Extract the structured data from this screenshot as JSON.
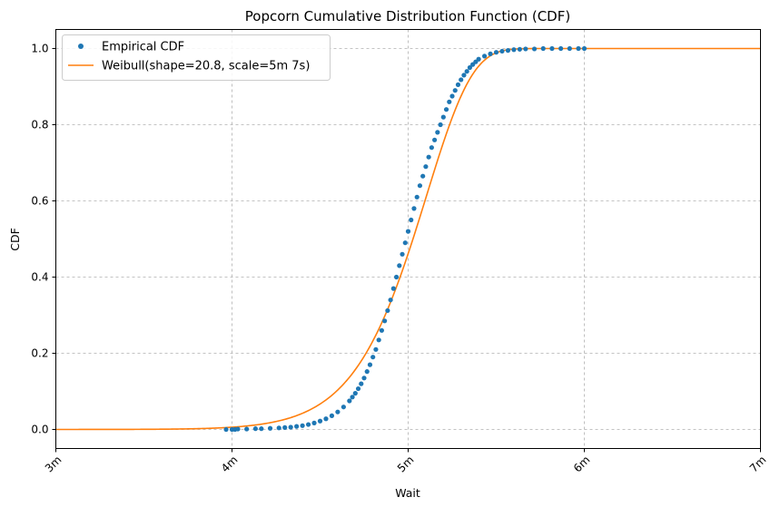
{
  "chart_data": {
    "type": "line",
    "title": "Popcorn Cumulative Distribution Function (CDF)",
    "xlabel": "Wait",
    "ylabel": "CDF",
    "xlim_seconds": [
      180,
      420
    ],
    "ylim": [
      -0.05,
      1.05
    ],
    "x_ticks": [
      {
        "value": 180,
        "label": "3m"
      },
      {
        "value": 240,
        "label": "4m"
      },
      {
        "value": 300,
        "label": "5m"
      },
      {
        "value": 360,
        "label": "6m"
      },
      {
        "value": 420,
        "label": "7m"
      }
    ],
    "y_ticks": [
      {
        "value": 0.0,
        "label": "0.0"
      },
      {
        "value": 0.2,
        "label": "0.2"
      },
      {
        "value": 0.4,
        "label": "0.4"
      },
      {
        "value": 0.6,
        "label": "0.6"
      },
      {
        "value": 0.8,
        "label": "0.8"
      },
      {
        "value": 1.0,
        "label": "1.0"
      }
    ],
    "grid": true,
    "legend_position": "top-left",
    "series": [
      {
        "name": "Empirical CDF",
        "kind": "scatter",
        "color": "#1f77b4",
        "x_seconds": [
          238,
          240,
          241,
          242,
          245,
          248,
          250,
          253,
          256,
          258,
          260,
          262,
          264,
          266,
          268,
          270,
          272,
          274,
          276,
          278,
          280,
          281,
          282,
          283,
          284,
          285,
          286,
          287,
          288,
          289,
          290,
          291,
          292,
          293,
          294,
          295,
          296,
          297,
          298,
          299,
          300,
          301,
          302,
          303,
          304,
          305,
          306,
          307,
          308,
          309,
          310,
          311,
          312,
          313,
          314,
          315,
          316,
          317,
          318,
          319,
          320,
          321,
          322,
          323,
          324,
          326,
          328,
          330,
          332,
          334,
          336,
          338,
          340,
          343,
          346,
          349,
          352,
          355,
          358,
          360
        ],
        "y": [
          0.0,
          0.0,
          0.0,
          0.001,
          0.001,
          0.002,
          0.002,
          0.003,
          0.004,
          0.005,
          0.006,
          0.008,
          0.01,
          0.013,
          0.017,
          0.022,
          0.028,
          0.036,
          0.046,
          0.059,
          0.075,
          0.085,
          0.095,
          0.107,
          0.12,
          0.135,
          0.152,
          0.17,
          0.19,
          0.21,
          0.235,
          0.26,
          0.285,
          0.312,
          0.34,
          0.37,
          0.4,
          0.43,
          0.46,
          0.49,
          0.52,
          0.55,
          0.58,
          0.61,
          0.64,
          0.665,
          0.69,
          0.715,
          0.74,
          0.76,
          0.78,
          0.8,
          0.82,
          0.84,
          0.86,
          0.875,
          0.89,
          0.905,
          0.918,
          0.93,
          0.94,
          0.95,
          0.958,
          0.965,
          0.972,
          0.98,
          0.986,
          0.99,
          0.993,
          0.995,
          0.997,
          0.998,
          0.999,
          0.999,
          1.0,
          1.0,
          1.0,
          1.0,
          1.0,
          1.0
        ]
      },
      {
        "name": "Weibull(shape=20.8, scale=5m 7s)",
        "kind": "line",
        "color": "#ff7f0e",
        "shape": 20.8,
        "scale_seconds": 307
      }
    ]
  }
}
